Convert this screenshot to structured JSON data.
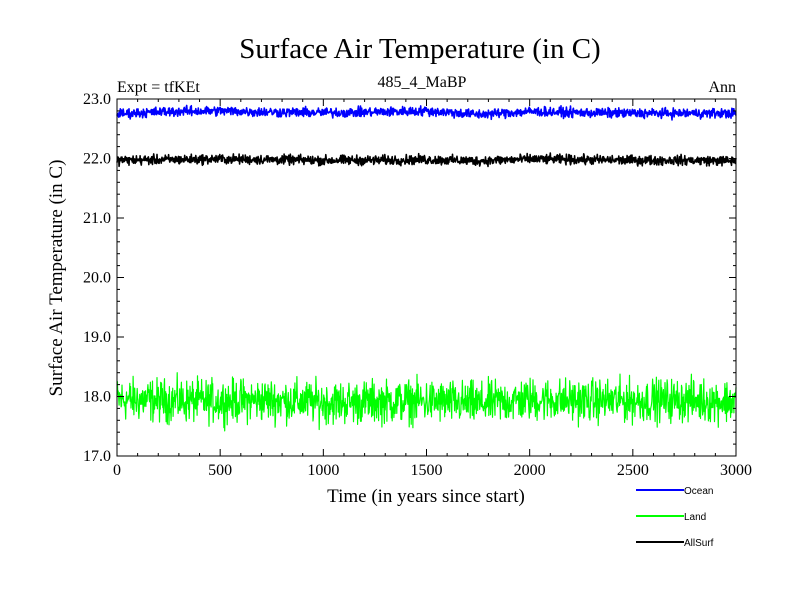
{
  "chart_data": {
    "type": "line",
    "title": "Surface Air Temperature (in C)",
    "subtitle": "485_4_MaBP",
    "experiment_label": "Expt = tfKEt",
    "period_label": "Ann",
    "xlabel": "Time (in years since start)",
    "ylabel": "Surface Air Temperature (in C)",
    "xlim": [
      0,
      3000
    ],
    "ylim": [
      17.0,
      23.0
    ],
    "x_ticks": [
      "0",
      "500",
      "1000",
      "1500",
      "2000",
      "2500",
      "3000"
    ],
    "y_ticks": [
      "17.0",
      "18.0",
      "19.0",
      "20.0",
      "21.0",
      "22.0",
      "23.0"
    ],
    "grid": false,
    "legend_position": "bottom-right outside",
    "series": [
      {
        "name": "Ocean",
        "color": "#0000ff",
        "x": [
          0,
          250,
          500,
          750,
          1000,
          1250,
          1500,
          1750,
          2000,
          2250,
          2500,
          2750,
          3000
        ],
        "values": [
          22.75,
          22.79,
          22.8,
          22.78,
          22.77,
          22.78,
          22.8,
          22.74,
          22.79,
          22.77,
          22.76,
          22.76,
          22.76
        ],
        "noise_amplitude": 0.05
      },
      {
        "name": "Land",
        "color": "#00ff00",
        "x": [
          0,
          250,
          500,
          750,
          1000,
          1250,
          1500,
          1750,
          2000,
          2250,
          2500,
          2750,
          3000
        ],
        "values": [
          17.95,
          17.93,
          17.92,
          17.94,
          17.9,
          17.91,
          17.92,
          17.88,
          17.95,
          17.93,
          17.93,
          17.94,
          17.92
        ],
        "noise_amplitude": 0.22
      },
      {
        "name": "AllSurf",
        "color": "#000000",
        "x": [
          0,
          250,
          500,
          750,
          1000,
          1250,
          1500,
          1750,
          2000,
          2250,
          2500,
          2750,
          3000
        ],
        "values": [
          21.97,
          21.98,
          21.99,
          21.98,
          21.97,
          21.97,
          21.98,
          21.96,
          21.99,
          21.98,
          21.97,
          21.97,
          21.96
        ],
        "noise_amplitude": 0.05
      }
    ]
  }
}
